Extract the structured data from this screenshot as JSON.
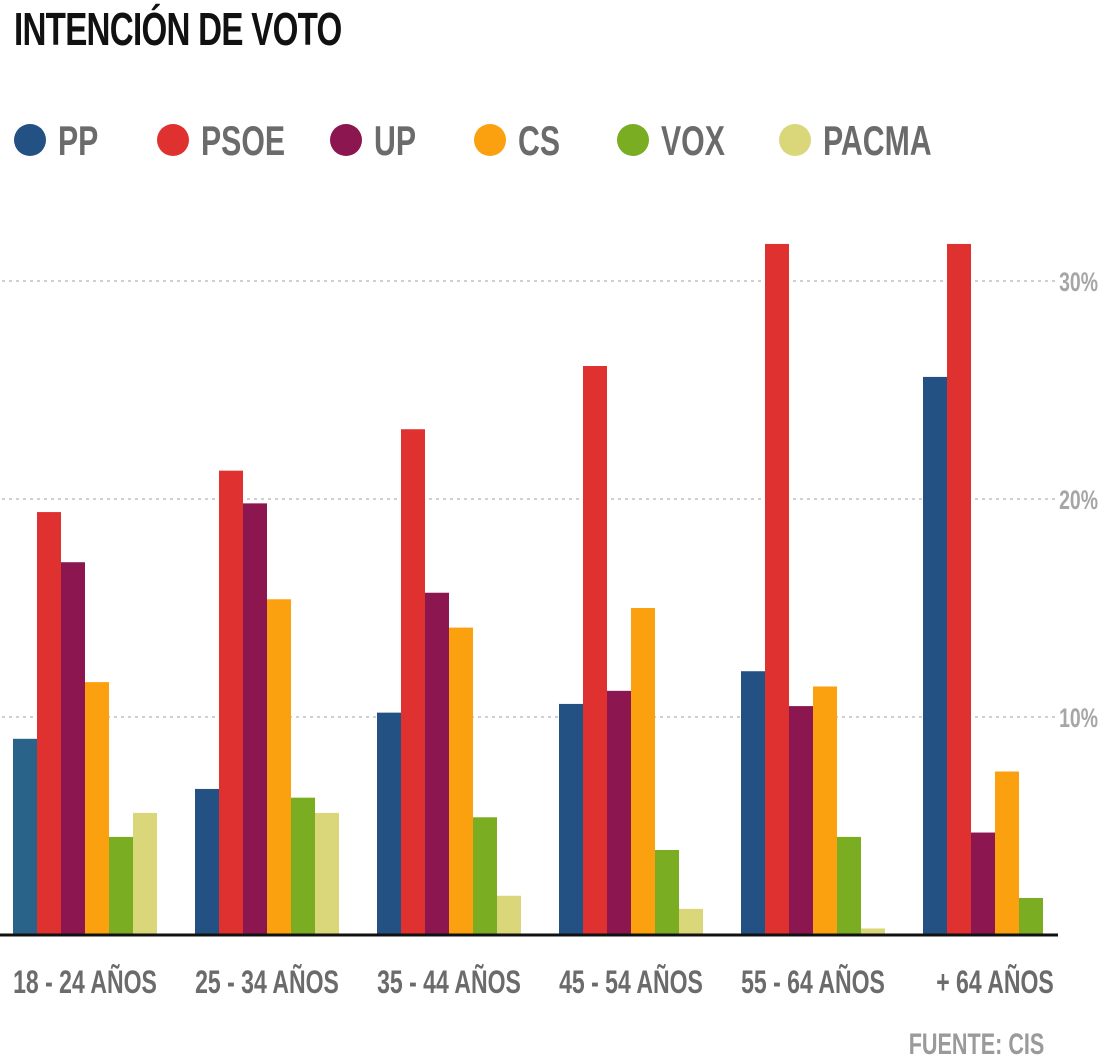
{
  "chart_data": {
    "type": "bar",
    "title": "INTENCIÓN DE VOTO",
    "categories": [
      "18 - 24 AÑOS",
      "25 - 34 AÑOS",
      "35 - 44 AÑOS",
      "45 - 54 AÑOS",
      "55 - 64 AÑOS",
      "+ 64 AÑOS"
    ],
    "series": [
      {
        "name": "PP",
        "color": "#235183",
        "values": [
          9.0,
          6.7,
          10.2,
          10.6,
          12.1,
          25.6
        ]
      },
      {
        "name": "PSOE",
        "color": "#e03131",
        "values": [
          19.4,
          21.3,
          23.2,
          26.1,
          31.7,
          31.7
        ]
      },
      {
        "name": "UP",
        "color": "#8c1650",
        "values": [
          17.1,
          19.8,
          15.7,
          11.2,
          10.5,
          4.7
        ]
      },
      {
        "name": "CS",
        "color": "#fba00e",
        "values": [
          11.6,
          15.4,
          14.1,
          15.0,
          11.4,
          7.5
        ]
      },
      {
        "name": "VOX",
        "color": "#7aad22",
        "values": [
          4.5,
          6.3,
          5.4,
          3.9,
          4.5,
          1.7
        ]
      },
      {
        "name": "PACMA",
        "color": "#d9d77a",
        "values": [
          5.6,
          5.6,
          1.8,
          1.2,
          0.3,
          0
        ]
      }
    ],
    "first_bar_color": "#2a6389",
    "ylim": [
      0,
      33
    ],
    "y_ticks": [
      10,
      20,
      30
    ],
    "y_tick_labels": [
      "10%",
      "20%",
      "30%"
    ],
    "grid": "dashed horizontal",
    "legend_position": "top",
    "source": "FUENTE: CIS"
  }
}
